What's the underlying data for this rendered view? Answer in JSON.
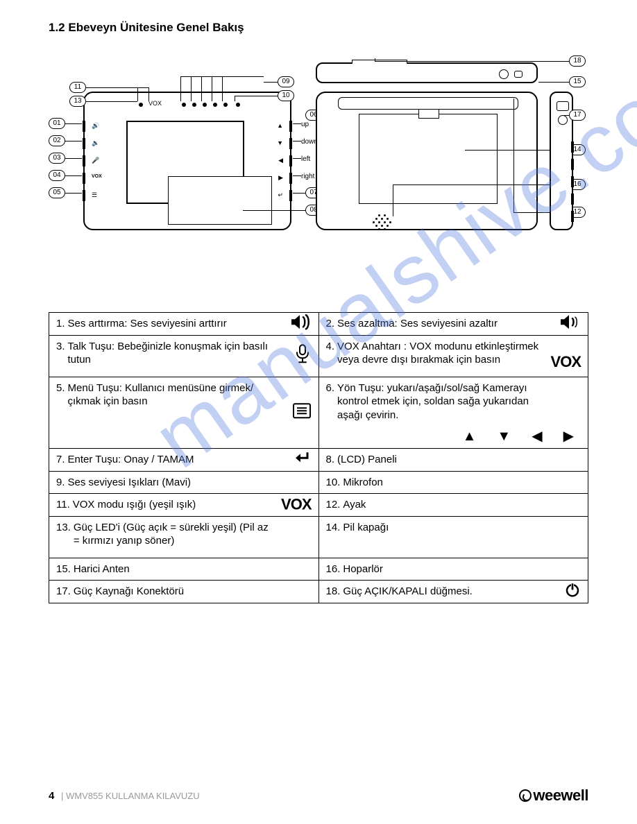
{
  "section_title": "1.2 Ebeveyn Ünitesine Genel Bakış",
  "diagram": {
    "front_callouts_left": [
      "01",
      "02",
      "03",
      "04",
      "05"
    ],
    "front_callouts_top": [
      "11",
      "13"
    ],
    "front_callouts_right_top": [
      "09",
      "10"
    ],
    "front_callouts_right": [
      "06",
      "07",
      "08"
    ],
    "right_btn_labels": [
      "up",
      "down",
      "left",
      "right"
    ],
    "vox_label": "VOX",
    "top_callouts": [
      "18",
      "15"
    ],
    "back_callouts": [
      "14",
      "16",
      "12",
      "17"
    ]
  },
  "table": [
    [
      {
        "num": "1.",
        "text": "Ses arttırma: Ses seviyesini arttırır",
        "icon": "vol-up"
      },
      {
        "num": "2.",
        "text": "Ses azaltma: Ses seviyesini azaltır",
        "icon": "vol-down"
      }
    ],
    [
      {
        "num": "3.",
        "text": "Talk Tuşu: Bebeğinizle konuşmak için basılı tutun",
        "icon": "mic"
      },
      {
        "num": "4.",
        "text": "VOX Anahtarı : VOX modunu etkinleştirmek veya devre dışı bırakmak için basın",
        "icon": "vox",
        "icon_pos": "br"
      }
    ],
    [
      {
        "num": "5.",
        "text": "Menü Tuşu: Kullanıcı menüsüne girmek/çıkmak için basın",
        "icon": "menu"
      },
      {
        "num": "6.",
        "text": "Yön Tuşu: yukarı/aşağı/sol/sağ Kamerayı kontrol etmek için, soldan sağa yukarıdan aşağı çevirin.",
        "icon": "arrows",
        "icon_pos": "below"
      }
    ],
    [
      {
        "num": "7.",
        "text": "Enter Tuşu: Onay / TAMAM",
        "icon": "enter"
      },
      {
        "num": "8.",
        "text": "(LCD) Paneli"
      }
    ],
    [
      {
        "num": "9.",
        "text": "Ses seviyesi Işıkları (Mavi)"
      },
      {
        "num": "10.",
        "text": "Mikrofon"
      }
    ],
    [
      {
        "num": "11.",
        "text": "VOX modu ışığı (yeşil ışık)",
        "icon": "vox"
      },
      {
        "num": "12.",
        "text": "Ayak"
      }
    ],
    [
      {
        "num": "13.",
        "text": "Güç LED'i (Güç açık = sürekli yeşil) (Pil az = kırmızı yanıp söner)"
      },
      {
        "num": "14.",
        "text": "Pil kapağı"
      }
    ],
    [
      {
        "num": "15.",
        "text": "Harici Anten"
      },
      {
        "num": "16.",
        "text": "Hoparlör"
      }
    ],
    [
      {
        "num": "17.",
        "text": "Güç Kaynağı Konektörü"
      },
      {
        "num": "18.",
        "text": "Güç AÇIK/KAPALI düğmesi.",
        "icon": "power"
      }
    ]
  ],
  "footer": {
    "page_num": "4",
    "sep": "|",
    "doc_title": "WMV855 KULLANMA KILAVUZU",
    "brand": "weewell"
  },
  "watermark": "manualshive.com",
  "icons": {
    "arrows": [
      "▲",
      "▼",
      "◀",
      "▶"
    ]
  }
}
